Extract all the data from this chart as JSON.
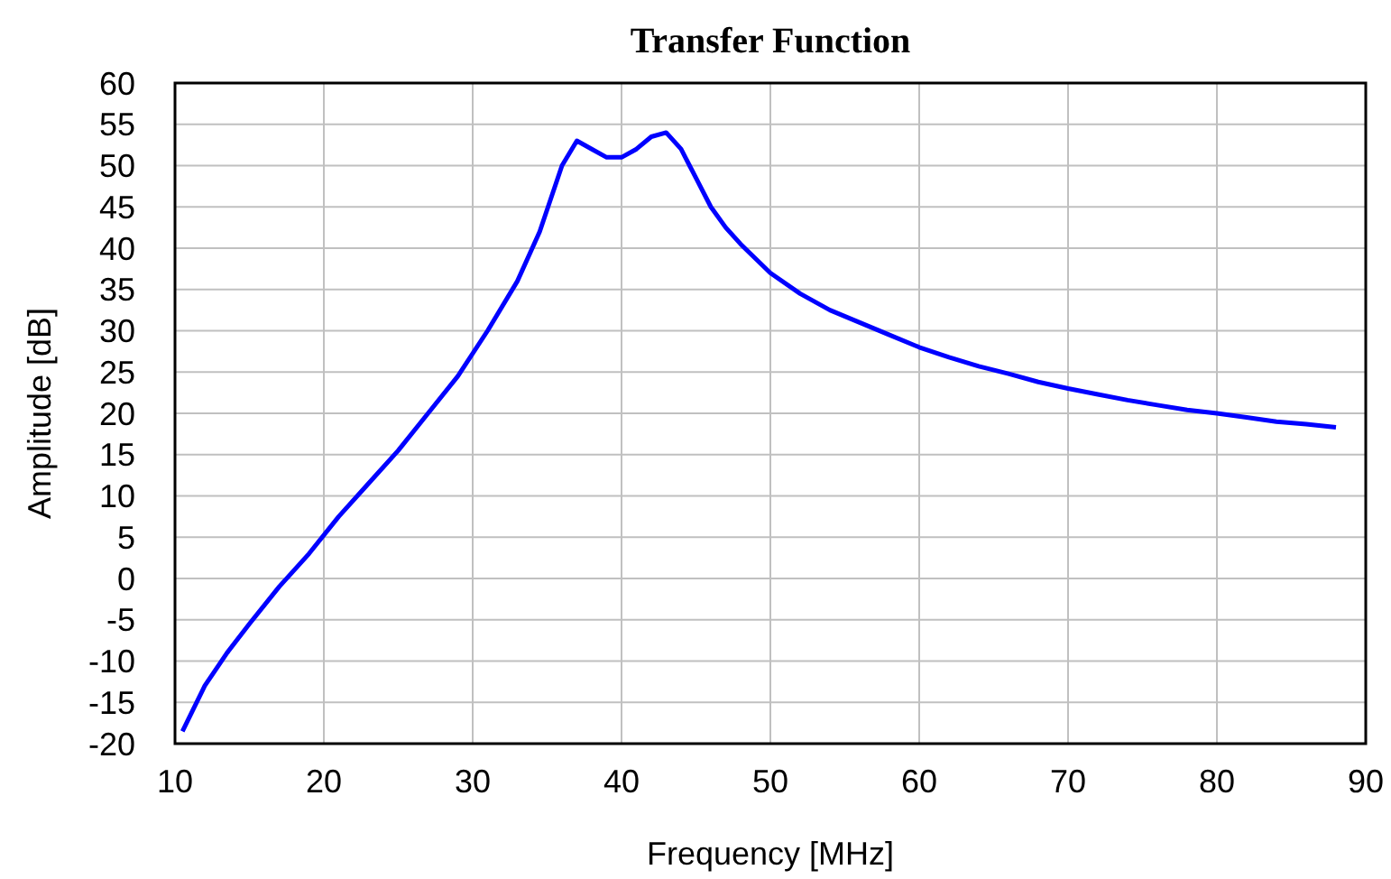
{
  "chart_data": {
    "type": "line",
    "title": "Transfer Function",
    "xlabel": "Frequency [MHz]",
    "ylabel": "Amplitude [dB]",
    "x": [
      10.5,
      12,
      13.5,
      15,
      17,
      19,
      21,
      23,
      25,
      27,
      29,
      31,
      33,
      34.5,
      36,
      37,
      38,
      39,
      40,
      41,
      42,
      43,
      44,
      45,
      46,
      47,
      48,
      50,
      52,
      54,
      56,
      58,
      60,
      62,
      64,
      66,
      68,
      70,
      72,
      74,
      76,
      78,
      80,
      82,
      84,
      86,
      88
    ],
    "series": [
      {
        "color": "#0000ff",
        "values": [
          -18.5,
          -13,
          -9,
          -5.5,
          -1,
          3,
          7.5,
          11.5,
          15.5,
          20,
          24.5,
          30,
          36,
          42,
          50,
          53,
          52,
          51,
          51,
          52,
          53.5,
          54,
          52,
          48.5,
          45,
          42.5,
          40.5,
          37,
          34.5,
          32.5,
          31,
          29.5,
          28,
          26.8,
          25.7,
          24.8,
          23.8,
          23,
          22.3,
          21.6,
          21,
          20.4,
          20,
          19.5,
          19,
          18.7,
          18.3
        ]
      }
    ],
    "xlim": [
      10,
      90
    ],
    "xticks": [
      10,
      20,
      30,
      40,
      50,
      60,
      70,
      80,
      90
    ],
    "ylim": [
      -20,
      60
    ],
    "yticks": [
      -20,
      -15,
      -10,
      -5,
      0,
      5,
      10,
      15,
      20,
      25,
      30,
      35,
      40,
      45,
      50,
      55,
      60
    ],
    "grid": true,
    "marker": "none",
    "line_style": "solid"
  }
}
